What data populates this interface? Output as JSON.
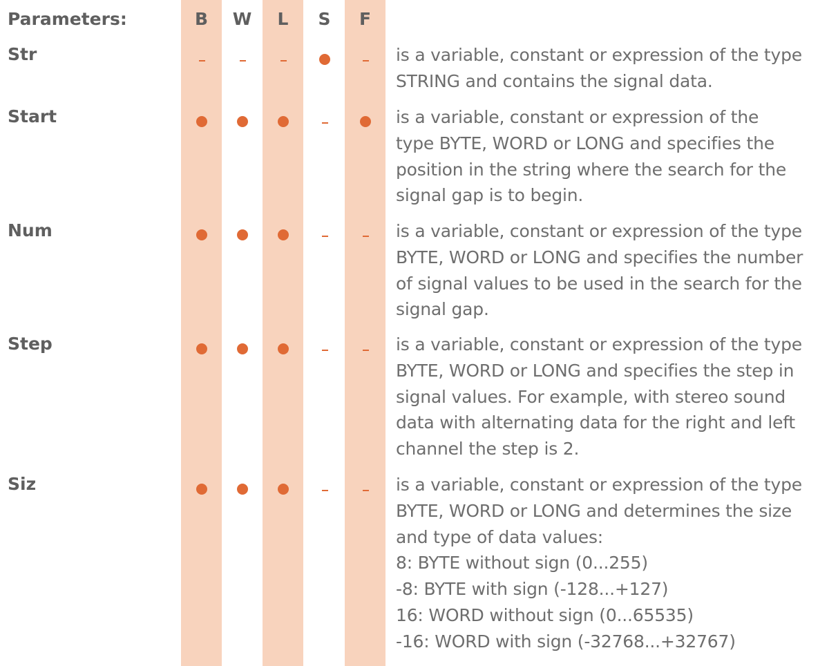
{
  "header": {
    "label": "Parameters:",
    "columns": [
      "B",
      "W",
      "L",
      "S",
      "F"
    ]
  },
  "colors": {
    "band": "#f8d3bd",
    "marker": "#e06a35",
    "heading_text": "#5f5f5f",
    "body_text": "#6e6e6e"
  },
  "parameters": [
    {
      "name": "Str",
      "flags": [
        "-",
        "-",
        "-",
        "dot",
        "-"
      ],
      "description": "is a variable, constant or expression of the type\nSTRING and contains the signal data."
    },
    {
      "name": "Start",
      "flags": [
        "dot",
        "dot",
        "dot",
        "-",
        "dot"
      ],
      "description": "is a variable, constant or expression of the\ntype BYTE, WORD or LONG and specifies the\nposition in the string where the search for the\nsignal gap is to begin."
    },
    {
      "name": "Num",
      "flags": [
        "dot",
        "dot",
        "dot",
        "-",
        "-"
      ],
      "description": "is a variable, constant or expression of the type\nBYTE, WORD or LONG and specifies the number\nof signal values to be used in the search for the\nsignal gap."
    },
    {
      "name": "Step",
      "flags": [
        "dot",
        "dot",
        "dot",
        "-",
        "-"
      ],
      "description": "is a variable, constant or expression of the type\nBYTE, WORD or LONG and specifies the step in\nsignal values. For example, with stereo sound\ndata with alternating data for the right and left\nchannel the step is 2."
    },
    {
      "name": "Siz",
      "flags": [
        "dot",
        "dot",
        "dot",
        "-",
        "-"
      ],
      "description": "is a variable, constant or expression of the type\nBYTE, WORD or LONG and determines the size\nand type of data values:\n8:  BYTE without sign (0...255)\n-8:  BYTE with sign (-128...+127)\n16:  WORD without sign (0...65535)\n-16:  WORD with sign (-32768...+32767)"
    }
  ]
}
